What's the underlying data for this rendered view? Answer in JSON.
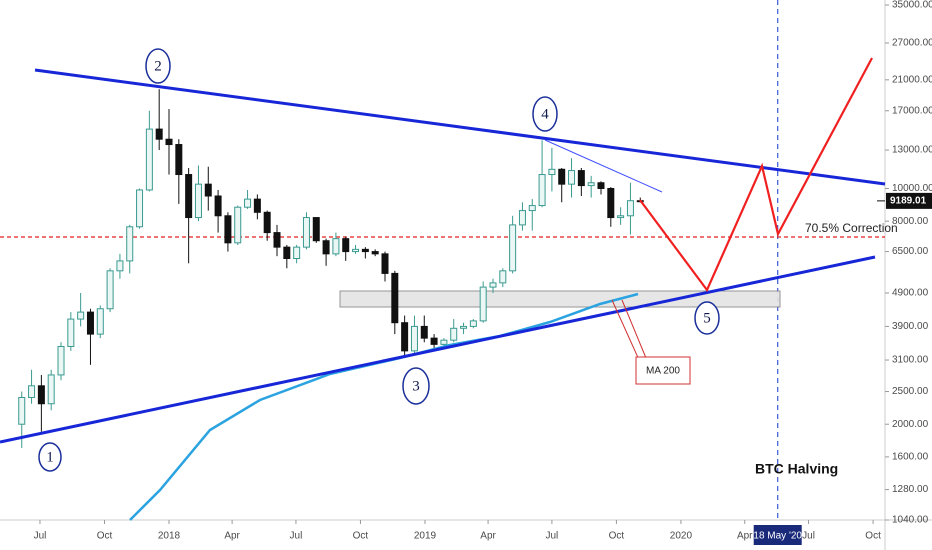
{
  "chart_data": {
    "type": "candlestick",
    "log_scale": true,
    "x": [
      "2017-06-05",
      "2017-06-19",
      "2017-07-03",
      "2017-07-17",
      "2017-07-31",
      "2017-08-14",
      "2017-08-28",
      "2017-09-11",
      "2017-09-25",
      "2017-10-09",
      "2017-10-23",
      "2017-11-06",
      "2017-11-20",
      "2017-12-04",
      "2017-12-18",
      "2018-01-01",
      "2018-01-15",
      "2018-01-29",
      "2018-02-12",
      "2018-02-26",
      "2018-03-12",
      "2018-03-26",
      "2018-04-09",
      "2018-04-23",
      "2018-05-07",
      "2018-05-21",
      "2018-06-04",
      "2018-06-18",
      "2018-07-02",
      "2018-07-16",
      "2018-07-30",
      "2018-08-13",
      "2018-08-27",
      "2018-09-10",
      "2018-09-24",
      "2018-10-08",
      "2018-10-22",
      "2018-11-05",
      "2018-11-19",
      "2018-12-03",
      "2018-12-17",
      "2018-12-31",
      "2019-01-14",
      "2019-01-28",
      "2019-02-11",
      "2019-02-25",
      "2019-03-11",
      "2019-03-25",
      "2019-04-08",
      "2019-04-22",
      "2019-05-06",
      "2019-05-20",
      "2019-06-03",
      "2019-06-17",
      "2019-07-01",
      "2019-07-15",
      "2019-07-29",
      "2019-08-12",
      "2019-08-26",
      "2019-09-09",
      "2019-09-23",
      "2019-10-07",
      "2019-10-21",
      "2019-11-04"
    ],
    "open": [
      2000,
      2400,
      2600,
      2300,
      2800,
      3400,
      4100,
      4300,
      3700,
      4400,
      5700,
      6100,
      7700,
      9900,
      15000,
      14000,
      13500,
      11000,
      8200,
      10300,
      9500,
      8300,
      6900,
      8800,
      9300,
      8500,
      7400,
      6700,
      6200,
      6700,
      8200,
      7000,
      6400,
      7100,
      6500,
      6600,
      6500,
      6400,
      5600,
      4000,
      3300,
      3900,
      3600,
      3450,
      3550,
      3850,
      3900,
      4050,
      5100,
      5250,
      5700,
      7800,
      8600,
      8900,
      11000,
      11400,
      10300,
      11300,
      10200,
      10400,
      10000,
      8200,
      8300,
      9200
    ],
    "high": [
      2500,
      2900,
      2800,
      2900,
      3500,
      4300,
      4900,
      4400,
      4500,
      5800,
      6400,
      7800,
      10000,
      17000,
      19700,
      17200,
      14000,
      11500,
      11700,
      11600,
      9900,
      8500,
      8900,
      9900,
      9600,
      8600,
      7800,
      6800,
      6800,
      8500,
      8200,
      7100,
      7400,
      7200,
      6800,
      6700,
      6600,
      6500,
      5700,
      4200,
      4200,
      4200,
      3700,
      3600,
      4100,
      4000,
      4100,
      5300,
      5400,
      5800,
      8300,
      9100,
      9300,
      13900,
      13200,
      11500,
      12300,
      11500,
      10900,
      10500,
      10100,
      8800,
      10400,
      9400
    ],
    "low": [
      1700,
      2300,
      1900,
      2200,
      2700,
      3300,
      3900,
      3000,
      3600,
      4300,
      5400,
      5600,
      7600,
      9800,
      13000,
      11000,
      9000,
      6000,
      8000,
      8600,
      7400,
      6500,
      6800,
      8700,
      8100,
      7000,
      6300,
      5800,
      6000,
      6600,
      6900,
      5900,
      6300,
      6100,
      6400,
      6200,
      6300,
      5300,
      3700,
      3200,
      3200,
      3500,
      3350,
      3350,
      3500,
      3700,
      3850,
      4000,
      4900,
      5100,
      5600,
      7500,
      7500,
      8800,
      9800,
      9100,
      9400,
      9500,
      9400,
      9600,
      7700,
      7800,
      7300,
      9100
    ],
    "close": [
      2400,
      2600,
      2300,
      2800,
      3400,
      4100,
      4300,
      3700,
      4400,
      5700,
      6100,
      7700,
      9900,
      15000,
      14000,
      13500,
      11000,
      8200,
      10300,
      9500,
      8300,
      6900,
      8800,
      9300,
      8500,
      7400,
      6700,
      6200,
      6700,
      8200,
      7000,
      6400,
      7100,
      6500,
      6600,
      6500,
      6400,
      5600,
      4000,
      3300,
      3900,
      3600,
      3450,
      3550,
      3850,
      3900,
      4050,
      5100,
      5250,
      5700,
      7800,
      8600,
      8900,
      11000,
      11400,
      10300,
      11300,
      10200,
      10400,
      10000,
      8200,
      8300,
      9200,
      9189.01
    ],
    "up_color": "#3a9a90",
    "down_color": "#111111",
    "xlim": [
      "2017-05-05",
      "2020-10-18"
    ],
    "xticks": [
      {
        "value": "2017-07-01",
        "label": "Jul"
      },
      {
        "value": "2017-10-01",
        "label": "Oct"
      },
      {
        "value": "2018-01-01",
        "label": "2018"
      },
      {
        "value": "2018-04-01",
        "label": "Apr"
      },
      {
        "value": "2018-07-01",
        "label": "Jul"
      },
      {
        "value": "2018-10-01",
        "label": "Oct"
      },
      {
        "value": "2019-01-01",
        "label": "2019"
      },
      {
        "value": "2019-04-01",
        "label": "Apr"
      },
      {
        "value": "2019-07-01",
        "label": "Jul"
      },
      {
        "value": "2019-10-01",
        "label": "Oct"
      },
      {
        "value": "2020-01-01",
        "label": "2020"
      },
      {
        "value": "2020-04-01",
        "label": "Apr"
      },
      {
        "value": "2020-07-01",
        "label": "Jul"
      },
      {
        "value": "2020-10-01",
        "label": "Oct"
      }
    ],
    "event_tick": {
      "value": "2020-05-18",
      "label": "18 May '20"
    },
    "ylim": [
      1040,
      35000
    ],
    "yticks": [
      {
        "value": 35000,
        "label": "35000.00"
      },
      {
        "value": 27000,
        "label": "27000.00"
      },
      {
        "value": 21000,
        "label": "21000.00"
      },
      {
        "value": 17000,
        "label": "17000.00"
      },
      {
        "value": 13000,
        "label": "13000.00"
      },
      {
        "value": 10000,
        "label": "10000.00"
      },
      {
        "value": 8000,
        "label": "8000.00"
      },
      {
        "value": 6500,
        "label": "6500.00"
      },
      {
        "value": 4900,
        "label": "4900.00"
      },
      {
        "value": 3900,
        "label": "3900.00"
      },
      {
        "value": 3100,
        "label": "3100.00"
      },
      {
        "value": 2500,
        "label": "2500.00"
      },
      {
        "value": 2000,
        "label": "2000.00"
      },
      {
        "value": 1600,
        "label": "1600.00"
      },
      {
        "value": 1280,
        "label": "1280.00"
      },
      {
        "value": 1040,
        "label": "1040.00"
      }
    ],
    "last_price": 9189.01,
    "wave_labels": [
      "1",
      "2",
      "3",
      "4",
      "5"
    ],
    "correction_label": "70.5% Correction",
    "ma_label": "MA 200",
    "event_label": "BTC Halving"
  }
}
